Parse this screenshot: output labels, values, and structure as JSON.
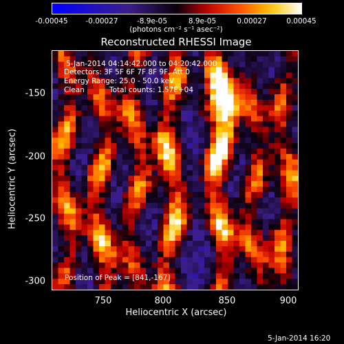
{
  "chart_data": {
    "type": "heatmap",
    "title": "Reconstructed RHESSI Image",
    "xlabel": "Heliocentric X (arcsec)",
    "ylabel": "Heliocentric Y (arcsec)",
    "xlim": [
      710,
      902
    ],
    "ylim": [
      -308,
      -123
    ],
    "x_ticks": [
      "750",
      "800",
      "850",
      "900"
    ],
    "x_tick_values": [
      750,
      800,
      850,
      900
    ],
    "y_ticks": [
      "-150",
      "-200",
      "-250",
      "-300"
    ],
    "y_tick_values": [
      -150,
      -200,
      -250,
      -300
    ],
    "colorbar": {
      "ticks": [
        "-0.00045",
        "-0.00027",
        "-8.9e-05",
        "8.9e-05",
        "0.00027",
        "0.00045"
      ],
      "units": "(photons cm⁻² s⁻¹ asec⁻²)",
      "range": [
        -0.00045,
        0.00045
      ]
    },
    "annotations": {
      "time_range": "5-Jan-2014 04:14:42.000 to 04:20:42.000",
      "detectors": "Detectors: 3F 5F 6F 7F 8F 9F, Att 0",
      "energy": "Energy Range: 25.0 - 50.0 keV",
      "method": "Clean",
      "counts": "Total counts: 1.57E+04",
      "peak": "Position of Peak = [841,-167]"
    },
    "peak": [
      841,
      -167
    ],
    "bright_ridges": [
      {
        "x": 720,
        "amp": 0.7,
        "y_center": -210
      },
      {
        "x": 748,
        "amp": 0.75,
        "y_center": -250
      },
      {
        "x": 775,
        "amp": 0.65,
        "y_center": -200
      },
      {
        "x": 803,
        "amp": 0.85,
        "y_center": -230
      },
      {
        "x": 841,
        "amp": 1.0,
        "y_center": -175
      },
      {
        "x": 868,
        "amp": 0.6,
        "y_center": -250
      },
      {
        "x": 893,
        "amp": 0.65,
        "y_center": -230
      }
    ],
    "footer": "5-Jan-2014 16:20"
  }
}
